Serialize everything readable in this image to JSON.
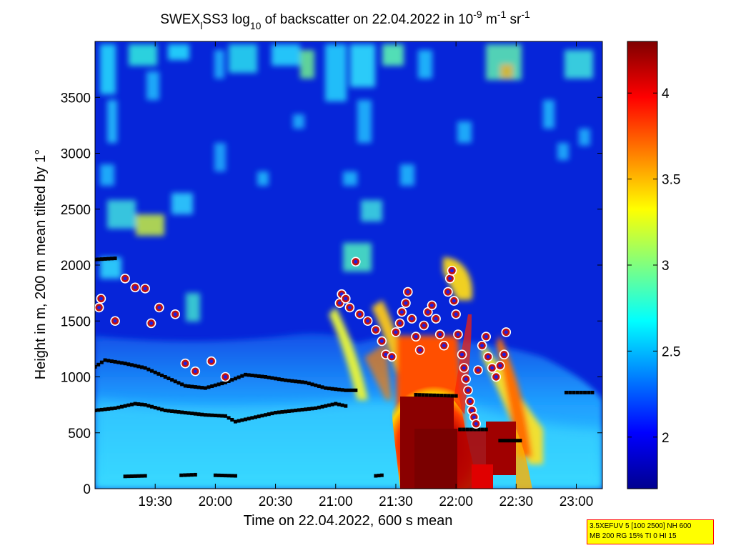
{
  "chart_data": {
    "type": "heatmap",
    "title": {
      "prefix": "SWEX",
      "prefix_sub": "l",
      "instrument": "SS3 log",
      "log_base": "10",
      "middle": " of backscatter on 22.04.2022 in 10",
      "exp1": "-9",
      "unit1": " m",
      "exp2": "-1",
      "unit2": " sr",
      "exp3": "-1"
    },
    "xlabel": "Time on 22.04.2022, 600 s mean",
    "ylabel": "Height in m, 200 m mean tilted by 1°",
    "x_ticks": [
      {
        "label": "19:30",
        "minutes": 1170
      },
      {
        "label": "20:00",
        "minutes": 1200
      },
      {
        "label": "20:30",
        "minutes": 1230
      },
      {
        "label": "21:00",
        "minutes": 1260
      },
      {
        "label": "21:30",
        "minutes": 1290
      },
      {
        "label": "22:00",
        "minutes": 1320
      },
      {
        "label": "22:30",
        "minutes": 1350
      },
      {
        "label": "23:00",
        "minutes": 1380
      }
    ],
    "x_range_minutes": [
      1140,
      1393
    ],
    "y_range": [
      0,
      4000
    ],
    "y_ticks": [
      0,
      500,
      1000,
      1500,
      2000,
      2500,
      3000,
      3500
    ],
    "colorbar": {
      "range": [
        1.7,
        4.3
      ],
      "ticks": [
        {
          "label": "2",
          "value": 2
        },
        {
          "label": "2.5",
          "value": 2.5
        },
        {
          "label": "3",
          "value": 3
        },
        {
          "label": "3.5",
          "value": 3.5
        },
        {
          "label": "4",
          "value": 4
        }
      ],
      "colormap": "jet"
    },
    "layer_lines": [
      {
        "name": "",
        "color": "#000000",
        "points": [
          [
            1140,
            1090
          ],
          [
            1145,
            1150
          ],
          [
            1155,
            1120
          ],
          [
            1165,
            1080
          ],
          [
            1175,
            1000
          ],
          [
            1185,
            920
          ],
          [
            1195,
            900
          ],
          [
            1205,
            950
          ],
          [
            1215,
            1020
          ],
          [
            1225,
            1000
          ],
          [
            1235,
            970
          ],
          [
            1245,
            950
          ],
          [
            1255,
            900
          ],
          [
            1265,
            880
          ],
          [
            1270,
            880
          ]
        ]
      },
      {
        "name": "",
        "color": "#000000",
        "points": [
          [
            1140,
            700
          ],
          [
            1150,
            720
          ],
          [
            1160,
            760
          ],
          [
            1165,
            750
          ],
          [
            1175,
            700
          ],
          [
            1185,
            680
          ],
          [
            1195,
            660
          ],
          [
            1205,
            650
          ],
          [
            1210,
            600
          ],
          [
            1220,
            640
          ],
          [
            1230,
            680
          ],
          [
            1240,
            700
          ],
          [
            1250,
            720
          ],
          [
            1260,
            760
          ],
          [
            1265,
            740
          ]
        ]
      },
      {
        "name": "",
        "color": "#000000",
        "points": [
          [
            1140,
            2050
          ],
          [
            1150,
            2060
          ]
        ]
      },
      {
        "name": "",
        "color": "#000000",
        "points": [
          [
            1300,
            840
          ],
          [
            1320,
            830
          ]
        ]
      },
      {
        "name": "",
        "color": "#000000",
        "points": [
          [
            1322,
            530
          ],
          [
            1335,
            530
          ]
        ]
      },
      {
        "name": "",
        "color": "#000000",
        "points": [
          [
            1342,
            430
          ],
          [
            1352,
            430
          ]
        ]
      },
      {
        "name": "",
        "color": "#000000",
        "points": [
          [
            1375,
            860
          ],
          [
            1388,
            860
          ]
        ]
      },
      {
        "name": "",
        "color": "#000000",
        "points": [
          [
            1155,
            110
          ],
          [
            1165,
            115
          ]
        ]
      },
      {
        "name": "",
        "color": "#000000",
        "points": [
          [
            1183,
            120
          ],
          [
            1190,
            125
          ]
        ]
      },
      {
        "name": "",
        "color": "#000000",
        "points": [
          [
            1200,
            120
          ],
          [
            1210,
            115
          ]
        ]
      },
      {
        "name": "",
        "color": "#000000",
        "points": [
          [
            1280,
            115
          ],
          [
            1283,
            120
          ]
        ]
      }
    ],
    "cloud_points": [
      [
        1142,
        1620
      ],
      [
        1143,
        1700
      ],
      [
        1150,
        1500
      ],
      [
        1155,
        1880
      ],
      [
        1160,
        1800
      ],
      [
        1165,
        1790
      ],
      [
        1168,
        1480
      ],
      [
        1172,
        1620
      ],
      [
        1180,
        1560
      ],
      [
        1185,
        1120
      ],
      [
        1190,
        1050
      ],
      [
        1198,
        1140
      ],
      [
        1205,
        1000
      ],
      [
        1262,
        1660
      ],
      [
        1263,
        1740
      ],
      [
        1265,
        1700
      ],
      [
        1267,
        1620
      ],
      [
        1270,
        2030
      ],
      [
        1272,
        1560
      ],
      [
        1276,
        1500
      ],
      [
        1280,
        1420
      ],
      [
        1283,
        1320
      ],
      [
        1285,
        1200
      ],
      [
        1288,
        1180
      ],
      [
        1290,
        1400
      ],
      [
        1292,
        1480
      ],
      [
        1293,
        1580
      ],
      [
        1295,
        1660
      ],
      [
        1296,
        1760
      ],
      [
        1298,
        1520
      ],
      [
        1300,
        1360
      ],
      [
        1302,
        1240
      ],
      [
        1304,
        1460
      ],
      [
        1306,
        1580
      ],
      [
        1308,
        1640
      ],
      [
        1310,
        1520
      ],
      [
        1312,
        1380
      ],
      [
        1314,
        1280
      ],
      [
        1316,
        1760
      ],
      [
        1317,
        1880
      ],
      [
        1318,
        1950
      ],
      [
        1319,
        1680
      ],
      [
        1320,
        1560
      ],
      [
        1321,
        1380
      ],
      [
        1323,
        1200
      ],
      [
        1324,
        1080
      ],
      [
        1325,
        980
      ],
      [
        1326,
        880
      ],
      [
        1327,
        780
      ],
      [
        1328,
        700
      ],
      [
        1329,
        640
      ],
      [
        1330,
        580
      ],
      [
        1331,
        1060
      ],
      [
        1333,
        1280
      ],
      [
        1335,
        1360
      ],
      [
        1336,
        1180
      ],
      [
        1338,
        1080
      ],
      [
        1340,
        1000
      ],
      [
        1342,
        1100
      ],
      [
        1344,
        1200
      ],
      [
        1345,
        1400
      ]
    ]
  },
  "info_box": {
    "line1": "3.5XEFUV 5 [100 2500] NH 600",
    "line2": "MB 200 RG 15% TI 0 HI 15"
  }
}
